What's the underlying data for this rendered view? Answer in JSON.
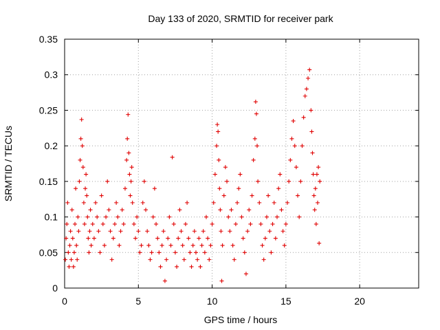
{
  "chart_data": {
    "type": "scatter",
    "title": "Day 133 of 2020, SRMTID for receiver park",
    "xlabel": "GPS time / hours",
    "ylabel": "SRMTID / TECUs",
    "xlim": [
      0,
      24
    ],
    "ylim": [
      0,
      0.35
    ],
    "xticks": [
      0,
      5,
      10,
      15,
      20
    ],
    "xtick_labels": [
      "0",
      "5",
      "10",
      "15",
      "20"
    ],
    "yticks": [
      0,
      0.05,
      0.1,
      0.15,
      0.2,
      0.25,
      0.3,
      0.35
    ],
    "ytick_labels": [
      "0",
      "0.05",
      "0.1",
      "0.15",
      "0.2",
      "0.25",
      "0.3",
      "0.35"
    ],
    "grid": true,
    "marker": "+",
    "color": "#e00000",
    "series": [
      {
        "name": "SRMTID",
        "points": [
          [
            0.05,
            0.04
          ],
          [
            0.1,
            0.07
          ],
          [
            0.15,
            0.09
          ],
          [
            0.2,
            0.12
          ],
          [
            0.25,
            0.05
          ],
          [
            0.3,
            0.03
          ],
          [
            0.35,
            0.06
          ],
          [
            0.4,
            0.08
          ],
          [
            0.45,
            0.04
          ],
          [
            0.5,
            0.11
          ],
          [
            0.55,
            0.07
          ],
          [
            0.6,
            0.03
          ],
          [
            0.65,
            0.05
          ],
          [
            0.7,
            0.09
          ],
          [
            0.75,
            0.14
          ],
          [
            0.8,
            0.06
          ],
          [
            0.85,
            0.04
          ],
          [
            0.9,
            0.1
          ],
          [
            0.95,
            0.08
          ],
          [
            1.0,
            0.15
          ],
          [
            1.05,
            0.18
          ],
          [
            1.1,
            0.21
          ],
          [
            1.15,
            0.237
          ],
          [
            1.2,
            0.2
          ],
          [
            1.25,
            0.17
          ],
          [
            1.3,
            0.12
          ],
          [
            1.35,
            0.09
          ],
          [
            1.4,
            0.14
          ],
          [
            1.45,
            0.16
          ],
          [
            1.5,
            0.13
          ],
          [
            1.55,
            0.1
          ],
          [
            1.6,
            0.07
          ],
          [
            1.65,
            0.05
          ],
          [
            1.7,
            0.08
          ],
          [
            1.75,
            0.11
          ],
          [
            1.8,
            0.06
          ],
          [
            1.9,
            0.09
          ],
          [
            2.0,
            0.07
          ],
          [
            2.1,
            0.12
          ],
          [
            2.2,
            0.1
          ],
          [
            2.3,
            0.08
          ],
          [
            2.4,
            0.05
          ],
          [
            2.5,
            0.13
          ],
          [
            2.6,
            0.09
          ],
          [
            2.7,
            0.06
          ],
          [
            2.8,
            0.1
          ],
          [
            2.9,
            0.15
          ],
          [
            3.0,
            0.11
          ],
          [
            3.1,
            0.08
          ],
          [
            3.2,
            0.04
          ],
          [
            3.3,
            0.07
          ],
          [
            3.4,
            0.09
          ],
          [
            3.5,
            0.12
          ],
          [
            3.6,
            0.1
          ],
          [
            3.7,
            0.06
          ],
          [
            3.8,
            0.08
          ],
          [
            3.9,
            0.11
          ],
          [
            4.0,
            0.09
          ],
          [
            4.1,
            0.14
          ],
          [
            4.2,
            0.18
          ],
          [
            4.25,
            0.21
          ],
          [
            4.3,
            0.244
          ],
          [
            4.35,
            0.19
          ],
          [
            4.4,
            0.16
          ],
          [
            4.45,
            0.13
          ],
          [
            4.5,
            0.15
          ],
          [
            4.55,
            0.17
          ],
          [
            4.6,
            0.12
          ],
          [
            4.7,
            0.09
          ],
          [
            4.8,
            0.07
          ],
          [
            4.9,
            0.1
          ],
          [
            5.0,
            0.08
          ],
          [
            5.1,
            0.05
          ],
          [
            5.2,
            0.06
          ],
          [
            5.3,
            0.12
          ],
          [
            5.4,
            0.15
          ],
          [
            5.5,
            0.11
          ],
          [
            5.6,
            0.08
          ],
          [
            5.7,
            0.06
          ],
          [
            5.8,
            0.04
          ],
          [
            5.9,
            0.05
          ],
          [
            6.0,
            0.1
          ],
          [
            6.1,
            0.14
          ],
          [
            6.2,
            0.09
          ],
          [
            6.3,
            0.07
          ],
          [
            6.4,
            0.05
          ],
          [
            6.5,
            0.03
          ],
          [
            6.6,
            0.06
          ],
          [
            6.7,
            0.08
          ],
          [
            6.8,
            0.01
          ],
          [
            6.9,
            0.04
          ],
          [
            7.0,
            0.07
          ],
          [
            7.1,
            0.1
          ],
          [
            7.2,
            0.06
          ],
          [
            7.3,
            0.184
          ],
          [
            7.4,
            0.09
          ],
          [
            7.5,
            0.05
          ],
          [
            7.6,
            0.03
          ],
          [
            7.7,
            0.07
          ],
          [
            7.8,
            0.11
          ],
          [
            7.9,
            0.08
          ],
          [
            8.0,
            0.06
          ],
          [
            8.1,
            0.04
          ],
          [
            8.2,
            0.09
          ],
          [
            8.3,
            0.12
          ],
          [
            8.4,
            0.07
          ],
          [
            8.5,
            0.05
          ],
          [
            8.6,
            0.03
          ],
          [
            8.7,
            0.06
          ],
          [
            8.8,
            0.08
          ],
          [
            8.9,
            0.05
          ],
          [
            9.0,
            0.04
          ],
          [
            9.1,
            0.07
          ],
          [
            9.2,
            0.03
          ],
          [
            9.3,
            0.06
          ],
          [
            9.4,
            0.08
          ],
          [
            9.5,
            0.05
          ],
          [
            9.6,
            0.1
          ],
          [
            9.7,
            0.07
          ],
          [
            9.8,
            0.04
          ],
          [
            9.9,
            0.06
          ],
          [
            10.0,
            0.09
          ],
          [
            10.1,
            0.12
          ],
          [
            10.2,
            0.16
          ],
          [
            10.3,
            0.2
          ],
          [
            10.35,
            0.23
          ],
          [
            10.4,
            0.22
          ],
          [
            10.45,
            0.18
          ],
          [
            10.5,
            0.14
          ],
          [
            10.55,
            0.11
          ],
          [
            10.6,
            0.08
          ],
          [
            10.65,
            0.01
          ],
          [
            10.7,
            0.06
          ],
          [
            10.8,
            0.13
          ],
          [
            10.9,
            0.17
          ],
          [
            11.0,
            0.15
          ],
          [
            11.1,
            0.1
          ],
          [
            11.2,
            0.08
          ],
          [
            11.3,
            0.11
          ],
          [
            11.4,
            0.06
          ],
          [
            11.5,
            0.04
          ],
          [
            11.6,
            0.09
          ],
          [
            11.7,
            0.12
          ],
          [
            11.8,
            0.14
          ],
          [
            11.9,
            0.16
          ],
          [
            12.0,
            0.1
          ],
          [
            12.1,
            0.07
          ],
          [
            12.2,
            0.05
          ],
          [
            12.3,
            0.02
          ],
          [
            12.4,
            0.08
          ],
          [
            12.5,
            0.11
          ],
          [
            12.6,
            0.09
          ],
          [
            12.7,
            0.13
          ],
          [
            12.8,
            0.18
          ],
          [
            12.9,
            0.21
          ],
          [
            12.95,
            0.262
          ],
          [
            13.0,
            0.245
          ],
          [
            13.05,
            0.2
          ],
          [
            13.1,
            0.15
          ],
          [
            13.2,
            0.12
          ],
          [
            13.3,
            0.09
          ],
          [
            13.4,
            0.06
          ],
          [
            13.5,
            0.04
          ],
          [
            13.6,
            0.07
          ],
          [
            13.7,
            0.1
          ],
          [
            13.8,
            0.13
          ],
          [
            13.9,
            0.08
          ],
          [
            14.0,
            0.05
          ],
          [
            14.1,
            0.09
          ],
          [
            14.2,
            0.12
          ],
          [
            14.3,
            0.07
          ],
          [
            14.4,
            0.1
          ],
          [
            14.5,
            0.14
          ],
          [
            14.6,
            0.16
          ],
          [
            14.7,
            0.11
          ],
          [
            14.8,
            0.08
          ],
          [
            14.9,
            0.06
          ],
          [
            15.0,
            0.09
          ],
          [
            15.1,
            0.12
          ],
          [
            15.2,
            0.15
          ],
          [
            15.3,
            0.18
          ],
          [
            15.4,
            0.21
          ],
          [
            15.5,
            0.235
          ],
          [
            15.6,
            0.2
          ],
          [
            15.7,
            0.17
          ],
          [
            15.8,
            0.13
          ],
          [
            15.9,
            0.1
          ],
          [
            16.0,
            0.15
          ],
          [
            16.1,
            0.2
          ],
          [
            16.2,
            0.24
          ],
          [
            16.3,
            0.27
          ],
          [
            16.4,
            0.28
          ],
          [
            16.5,
            0.295
          ],
          [
            16.6,
            0.307
          ],
          [
            16.7,
            0.25
          ],
          [
            16.75,
            0.22
          ],
          [
            16.8,
            0.19
          ],
          [
            16.85,
            0.16
          ],
          [
            16.9,
            0.13
          ],
          [
            16.95,
            0.11
          ],
          [
            17.0,
            0.14
          ],
          [
            17.05,
            0.09
          ],
          [
            17.1,
            0.16
          ],
          [
            17.15,
            0.12
          ],
          [
            17.2,
            0.17
          ],
          [
            17.25,
            0.063
          ],
          [
            17.3,
            0.15
          ]
        ]
      }
    ]
  }
}
